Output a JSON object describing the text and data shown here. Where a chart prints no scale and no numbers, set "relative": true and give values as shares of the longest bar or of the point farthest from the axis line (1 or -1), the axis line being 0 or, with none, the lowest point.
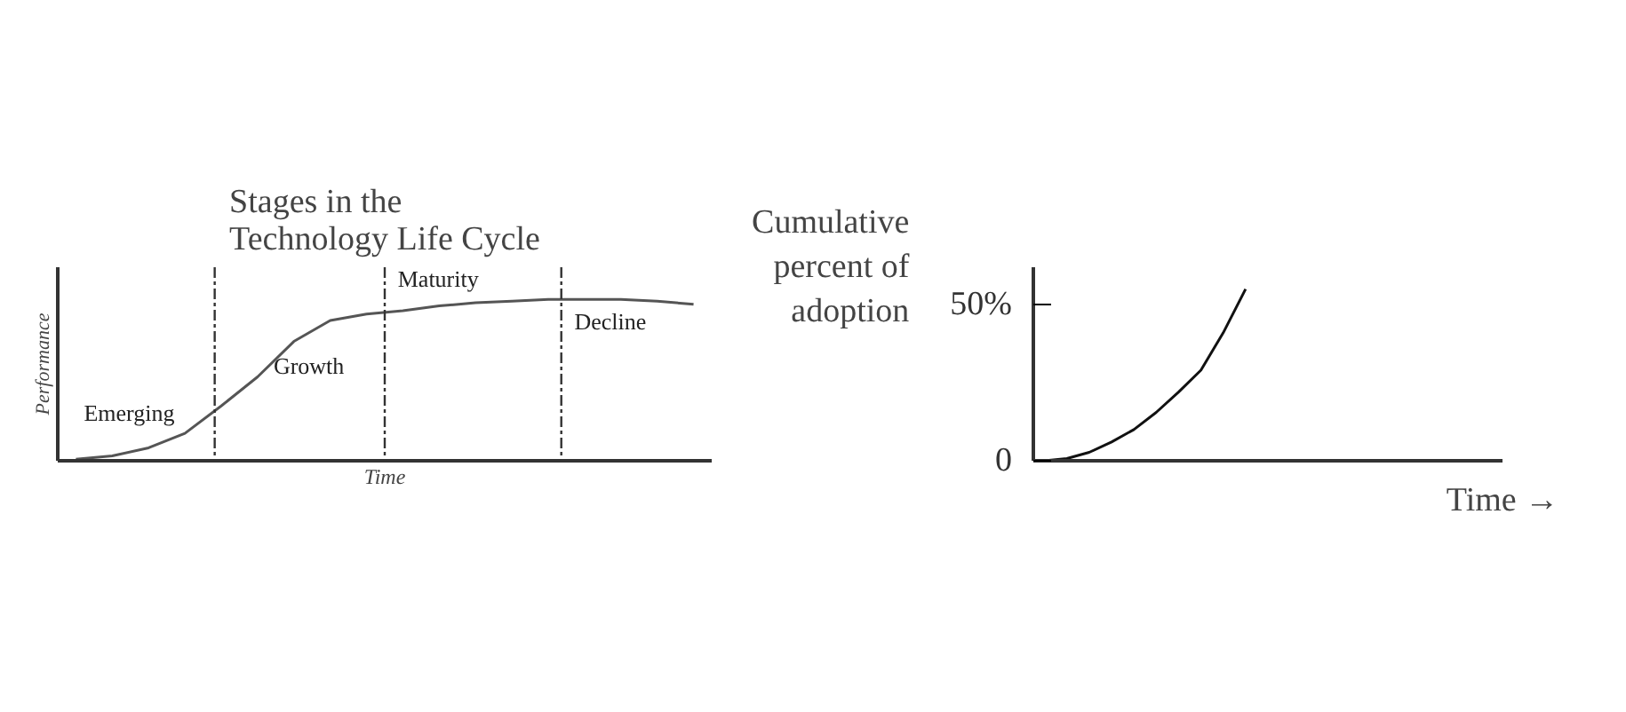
{
  "chart_data": [
    {
      "type": "line",
      "title": "Stages in the\nTechnology Life Cycle",
      "xlabel": "Time",
      "ylabel": "Performance",
      "relative": true,
      "tick_labels": false,
      "grid": false,
      "marker": "none",
      "line_style": "solid",
      "categories": [
        null,
        null,
        null,
        null,
        null,
        null,
        null,
        null,
        null,
        null,
        null,
        null,
        null,
        null,
        null,
        null,
        null,
        null
      ],
      "series": [
        {
          "color": "#555555",
          "values": [
            0.01,
            0.03,
            0.08,
            0.17,
            0.34,
            0.52,
            0.74,
            0.87,
            0.91,
            0.93,
            0.96,
            0.98,
            0.99,
            1.0,
            1.0,
            1.0,
            0.99,
            0.97
          ]
        }
      ],
      "annotations": [
        "Emerging",
        "Growth",
        "Maturity",
        "Decline"
      ]
    },
    {
      "type": "line",
      "xlabel": "Time →",
      "ylabel": "Cumulative percent of adoption",
      "tick_labels": "y",
      "grid": false,
      "marker": "none",
      "line_style": "solid",
      "categories": [
        null,
        null,
        null,
        null,
        null,
        null,
        null,
        null,
        null,
        null,
        null,
        null,
        null,
        null,
        null,
        null,
        null,
        null,
        null,
        null,
        null
      ],
      "ylim": [
        0,
        62
      ],
      "yticks": [
        0,
        {
          "value": 50,
          "label": "50%"
        }
      ],
      "series": [
        {
          "color": "#111111",
          "values": [
            0,
            0.7,
            2.7,
            6,
            10,
            15.5,
            22,
            29,
            41,
            55,
            null,
            null,
            null,
            null,
            null,
            null,
            null,
            null,
            null,
            null,
            null
          ]
        }
      ]
    }
  ]
}
